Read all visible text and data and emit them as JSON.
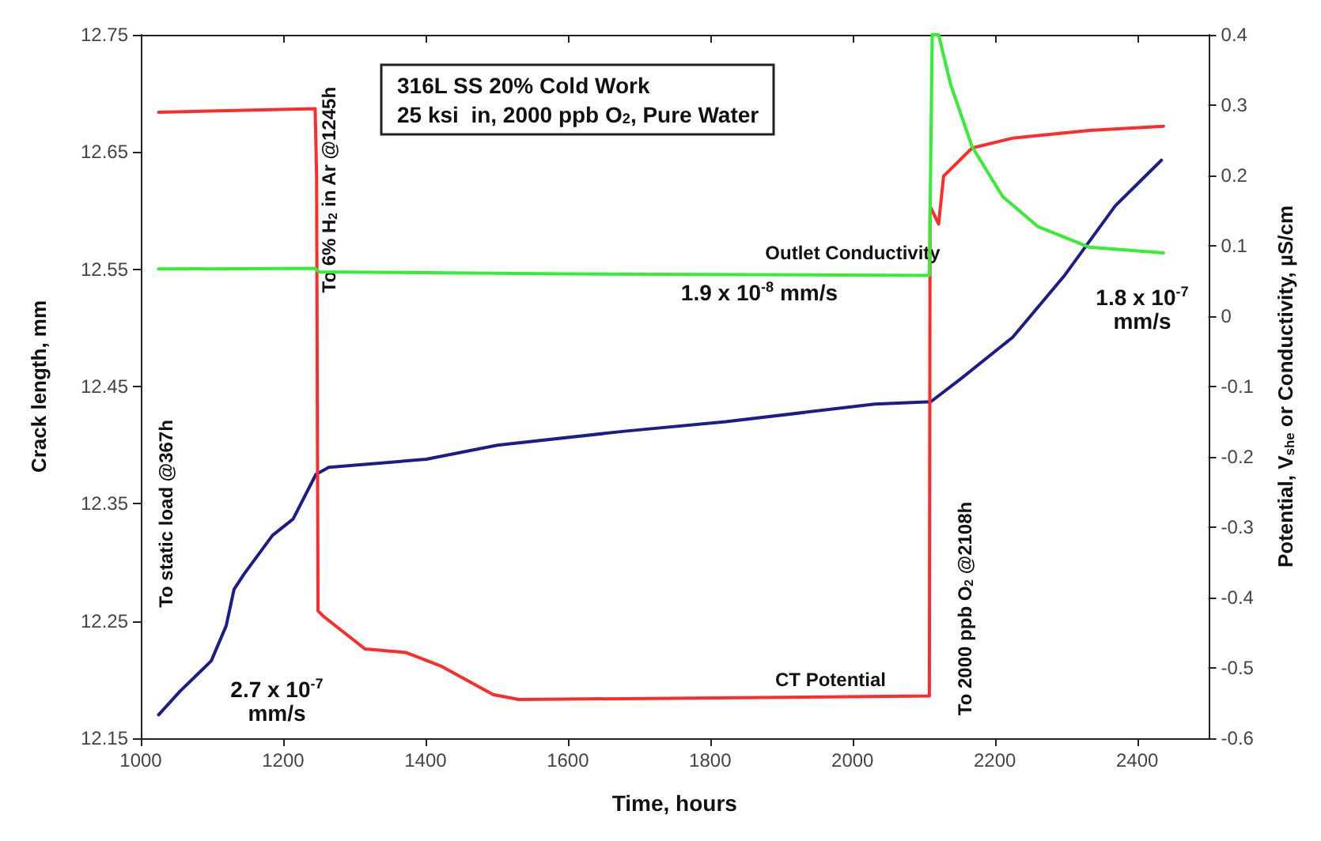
{
  "chart_data": {
    "type": "line",
    "title": "316L SS 20% Cold Work",
    "subtitle": "25 ksi  in, 2000 ppb O$_{2}$, Pure Water",
    "xlabel": "Time, hours",
    "ylabel": "Crack length, mm",
    "y2label": "Potential, V$_{she}$ or Conductivity, µS/cm",
    "xlim": [
      1000,
      2500
    ],
    "xticks": [
      1000,
      1200,
      1400,
      1600,
      1800,
      2000,
      2200,
      2400
    ],
    "ylim": [
      12.15,
      12.75
    ],
    "yticks": [
      12.15,
      12.25,
      12.35,
      12.45,
      12.55,
      12.65,
      12.75
    ],
    "y2lim": [
      -0.6,
      0.4
    ],
    "y2ticks": [
      -0.6,
      -0.5,
      -0.4,
      -0.3,
      -0.2,
      -0.1,
      0,
      0.1,
      0.2,
      0.3,
      0.4
    ],
    "series": [
      {
        "color": "#1c1c8a",
        "x": [
          1025,
          1055,
          1099,
          1120,
          1131,
          1145,
          1185,
          1214,
          1246,
          1264,
          1401,
          1501,
          1682,
          1822,
          2031,
          2110,
          2153,
          2225,
          2297,
          2369,
          2434
        ],
        "values": [
          12.17,
          12.19,
          12.216,
          12.246,
          12.277,
          12.29,
          12.323,
          12.337,
          12.375,
          12.381,
          12.388,
          12.4,
          12.412,
          12.42,
          12.435,
          12.437,
          12.457,
          12.492,
          12.544,
          12.604,
          12.643
        ]
      },
      {
        "color": "#ff2a2a",
        "axis": "y2",
        "x": [
          1025,
          1245,
          1247,
          1249,
          1257,
          1315,
          1372,
          1423,
          1495,
          1531,
          2108,
          2109,
          2121,
          2128,
          2168,
          2225,
          2333,
          2437
        ],
        "values": [
          0.29,
          0.295,
          0.2,
          -0.419,
          -0.427,
          -0.473,
          -0.478,
          -0.498,
          -0.538,
          -0.545,
          -0.54,
          0.156,
          0.131,
          0.199,
          0.239,
          0.253,
          0.264,
          0.27
        ]
      },
      {
        "color": "#33ee33",
        "axis": "y2",
        "x": [
          1025,
          1245,
          1250,
          1600,
          2108,
          2112,
          2121,
          2138,
          2168,
          2211,
          2261,
          2333,
          2437
        ],
        "values": [
          0.067,
          0.068,
          0.063,
          0.06,
          0.058,
          0.4,
          0.4,
          0.329,
          0.241,
          0.17,
          0.127,
          0.098,
          0.09
        ]
      }
    ],
    "annotations": [
      "Outlet Conductivity",
      "CT Potential",
      "1.9 x 10$^{-8}$ mm/s",
      "2.7 x 10$^{-7}$\nmm/s",
      "1.8 x 10$^{-7}$\nmm/s",
      "To static load @367h",
      "To 6% H$_{2}$ in Ar @1245h",
      "To 2000 ppb O$_{2}$ @2108h"
    ]
  }
}
